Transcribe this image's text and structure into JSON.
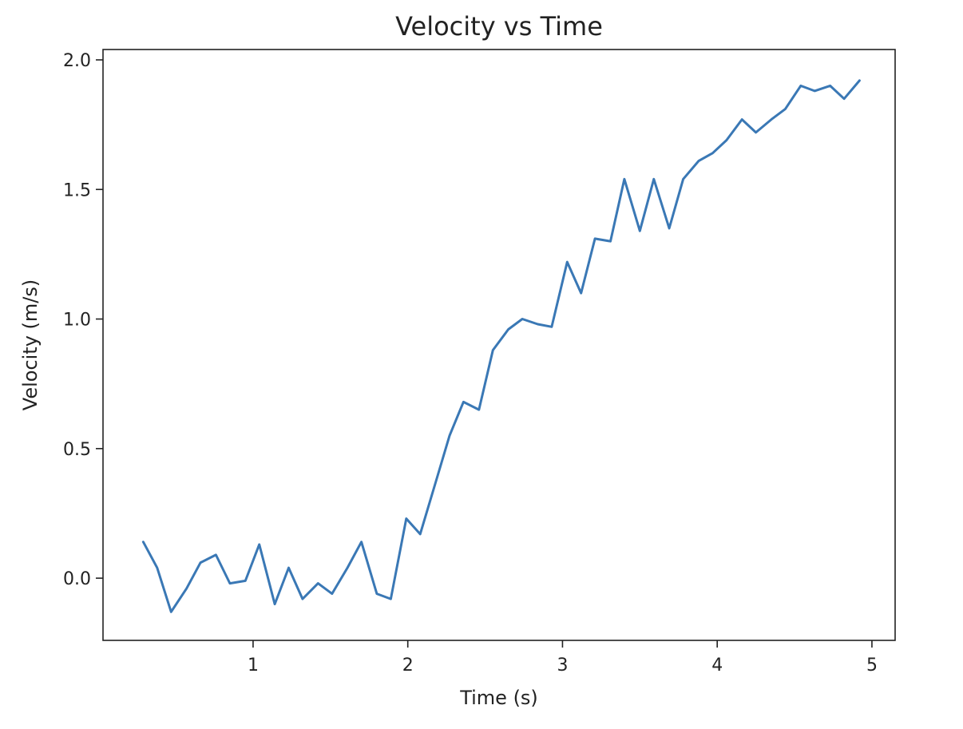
{
  "chart_data": {
    "type": "line",
    "title": "Velocity vs Time",
    "xlabel": "Time (s)",
    "ylabel": "Velocity (m/s)",
    "xlim": [
      0.03,
      5.15
    ],
    "ylim": [
      -0.24,
      2.04
    ],
    "grid": false,
    "xticks": [
      1,
      2,
      3,
      4,
      5
    ],
    "xtick_labels": [
      "1",
      "2",
      "3",
      "4",
      "5"
    ],
    "yticks": [
      0.0,
      0.5,
      1.0,
      1.5,
      2.0
    ],
    "ytick_labels": [
      "0.0",
      "0.5",
      "1.0",
      "1.5",
      "2.0"
    ],
    "series": [
      {
        "color": "#3a78b5",
        "x": [
          0.29,
          0.38,
          0.47,
          0.57,
          0.66,
          0.76,
          0.85,
          0.95,
          1.04,
          1.14,
          1.23,
          1.32,
          1.42,
          1.51,
          1.61,
          1.7,
          1.8,
          1.89,
          1.99,
          2.08,
          2.18,
          2.27,
          2.36,
          2.46,
          2.55,
          2.65,
          2.74,
          2.84,
          2.93,
          3.03,
          3.12,
          3.21,
          3.31,
          3.4,
          3.5,
          3.59,
          3.69,
          3.78,
          3.88,
          3.97,
          4.06,
          4.16,
          4.25,
          4.35,
          4.44,
          4.54,
          4.63,
          4.73,
          4.82,
          4.92
        ],
        "y": [
          0.14,
          0.04,
          -0.13,
          -0.04,
          0.06,
          0.09,
          -0.02,
          -0.01,
          0.13,
          -0.1,
          0.04,
          -0.08,
          -0.02,
          -0.06,
          0.04,
          0.14,
          -0.06,
          -0.08,
          0.23,
          0.17,
          0.37,
          0.55,
          0.68,
          0.65,
          0.88,
          0.96,
          1.0,
          0.98,
          0.97,
          1.22,
          1.1,
          1.31,
          1.3,
          1.54,
          1.34,
          1.54,
          1.35,
          1.54,
          1.61,
          1.64,
          1.69,
          1.77,
          1.72,
          1.77,
          1.81,
          1.9,
          1.88,
          1.9,
          1.85,
          1.92
        ]
      }
    ]
  }
}
